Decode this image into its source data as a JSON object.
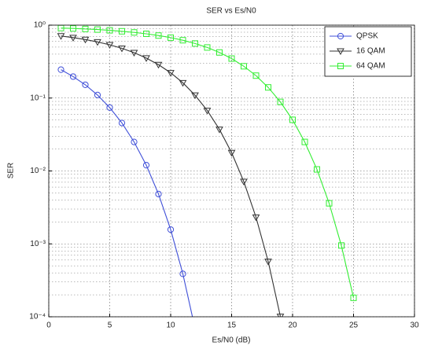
{
  "chart_data": {
    "type": "line",
    "title": "SER vs Es/N0",
    "xlabel": "Es/N0 (dB)",
    "ylabel": "SER",
    "xlim": [
      0,
      30
    ],
    "xticks": [
      0,
      5,
      10,
      15,
      20,
      25,
      30
    ],
    "ylim": [
      0.0001,
      1
    ],
    "log_y": true,
    "grid": true,
    "minor_grid": true,
    "yticks": [
      {
        "value": 0.0001,
        "label": "10⁻⁴"
      },
      {
        "value": 0.001,
        "label": "10⁻³"
      },
      {
        "value": 0.01,
        "label": "10⁻²"
      },
      {
        "value": 0.1,
        "label": "10⁻¹"
      },
      {
        "value": 1,
        "label": "10⁰"
      }
    ],
    "legend": "northeast",
    "series": [
      {
        "name": "QPSK",
        "color": "#3f4fd8",
        "marker": "circle",
        "x": [
          1,
          2,
          3,
          4,
          5,
          6,
          7,
          8,
          9,
          10,
          11,
          12
        ],
        "values": [
          0.245,
          0.197,
          0.152,
          0.11,
          0.074,
          0.0455,
          0.025,
          0.012,
          0.00483,
          0.00157,
          0.000388,
          6.9e-05
        ]
      },
      {
        "name": "16 QAM",
        "color": "#333333",
        "marker": "triangle-down",
        "x": [
          1,
          2,
          3,
          4,
          5,
          6,
          7,
          8,
          9,
          10,
          11,
          12,
          13,
          14,
          15,
          16,
          17,
          18,
          19
        ],
        "values": [
          0.71,
          0.675,
          0.635,
          0.589,
          0.538,
          0.481,
          0.419,
          0.354,
          0.287,
          0.222,
          0.162,
          0.1094,
          0.0675,
          0.0372,
          0.0178,
          0.00715,
          0.00232,
          0.000574,
          0.000101
        ]
      },
      {
        "name": "64 QAM",
        "color": "#33ee33",
        "marker": "square",
        "x": [
          1,
          2,
          3,
          4,
          5,
          6,
          7,
          8,
          9,
          10,
          11,
          12,
          13,
          14,
          15,
          16,
          17,
          18,
          19,
          20,
          21,
          22,
          23,
          24,
          25
        ],
        "values": [
          0.913,
          0.901,
          0.886,
          0.87,
          0.849,
          0.824,
          0.795,
          0.761,
          0.72,
          0.674,
          0.621,
          0.56,
          0.494,
          0.422,
          0.348,
          0.273,
          0.203,
          0.14,
          0.0886,
          0.0503,
          0.025,
          0.0105,
          0.0036,
          0.00095,
          0.000182
        ]
      }
    ]
  }
}
